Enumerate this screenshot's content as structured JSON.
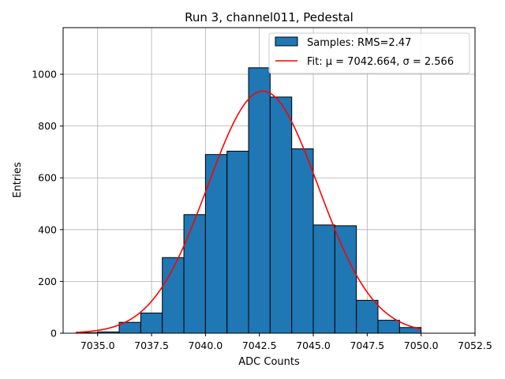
{
  "chart_data": {
    "type": "bar",
    "title": "Run 3, channel011, Pedestal",
    "xlabel": "ADC Counts",
    "ylabel": "Entries",
    "xlim": [
      7033.4,
      7052.5
    ],
    "ylim": [
      0,
      1180
    ],
    "xticks": [
      7035.0,
      7037.5,
      7040.0,
      7042.5,
      7045.0,
      7047.5,
      7050.0,
      7052.5
    ],
    "xtick_labels": [
      "7035.0",
      "7037.5",
      "7040.0",
      "7042.5",
      "7045.0",
      "7047.5",
      "7050.0",
      "7052.5"
    ],
    "yticks": [
      0,
      200,
      400,
      600,
      800,
      1000
    ],
    "ytick_labels": [
      "0",
      "200",
      "400",
      "600",
      "800",
      "1000"
    ],
    "grid": true,
    "legend_position": "top-right",
    "series": [
      {
        "name": "Samples: RMS=2.47",
        "kind": "histogram",
        "color": "#1f77b4",
        "edge_color": "#000000",
        "bin_edges": [
          7034.0,
          7035.0,
          7036.0,
          7037.0,
          7038.0,
          7039.0,
          7040.0,
          7041.0,
          7042.0,
          7043.0,
          7044.0,
          7045.0,
          7046.0,
          7047.0,
          7048.0,
          7049.0,
          7050.0
        ],
        "counts": [
          2,
          5,
          42,
          78,
          292,
          458,
          690,
          703,
          1025,
          912,
          712,
          418,
          415,
          127,
          50,
          22
        ]
      },
      {
        "name": "Fit: μ = 7042.664, σ = 2.566",
        "kind": "gaussian",
        "color": "#ff0000",
        "mu": 7042.664,
        "sigma": 2.566,
        "amplitude": 935,
        "x_range": [
          7034.0,
          7050.0
        ]
      }
    ]
  }
}
